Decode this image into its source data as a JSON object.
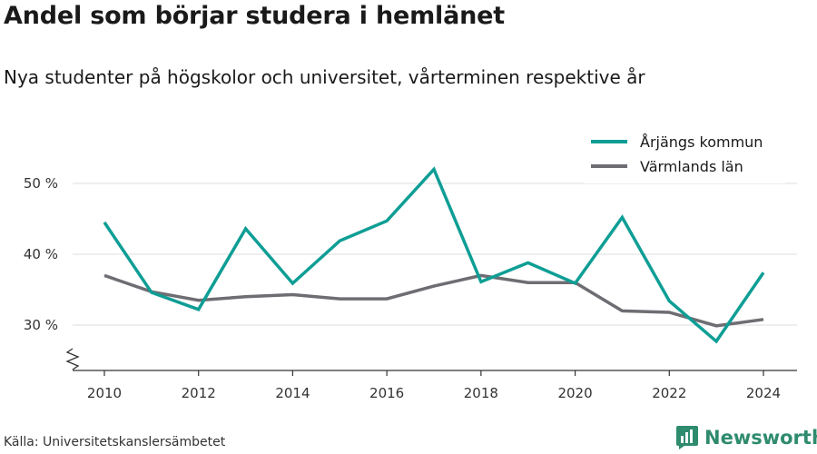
{
  "title": "Andel som börjar studera i hemlänet",
  "subtitle": "Nya studenter på högskolor och universitet, vårterminen respektive år",
  "source": "Källa: Universitetskanslersämbetet",
  "brand": "Newsworthy",
  "colors": {
    "series1": "#0e9e95",
    "series2": "#6e6d73",
    "grid": "#dddddd",
    "axis": "#333333",
    "brand": "#2e8b6e"
  },
  "chart_data": {
    "type": "line",
    "x": [
      2010,
      2011,
      2012,
      2013,
      2014,
      2015,
      2016,
      2017,
      2018,
      2019,
      2020,
      2021,
      2022,
      2023,
      2024
    ],
    "xticks": [
      "2010",
      "2012",
      "2014",
      "2016",
      "2018",
      "2020",
      "2022",
      "2024"
    ],
    "yticks": [
      "30 %",
      "40 %",
      "50 %"
    ],
    "ylim": [
      24,
      55
    ],
    "y_axis_break": true,
    "grid": true,
    "legend_position": "top-right",
    "series": [
      {
        "name": "Årjängs kommun",
        "color": "#0e9e95",
        "values": [
          44.5,
          34.6,
          32.2,
          43.6,
          35.9,
          41.9,
          44.7,
          52.0,
          36.1,
          38.8,
          35.9,
          45.2,
          33.4,
          27.7,
          37.4
        ]
      },
      {
        "name": "Värmlands län",
        "color": "#6e6d73",
        "values": [
          37.0,
          34.7,
          33.5,
          34.0,
          34.3,
          33.7,
          33.7,
          35.5,
          37.0,
          36.0,
          36.0,
          32.0,
          31.8,
          29.9,
          30.8
        ]
      }
    ]
  }
}
